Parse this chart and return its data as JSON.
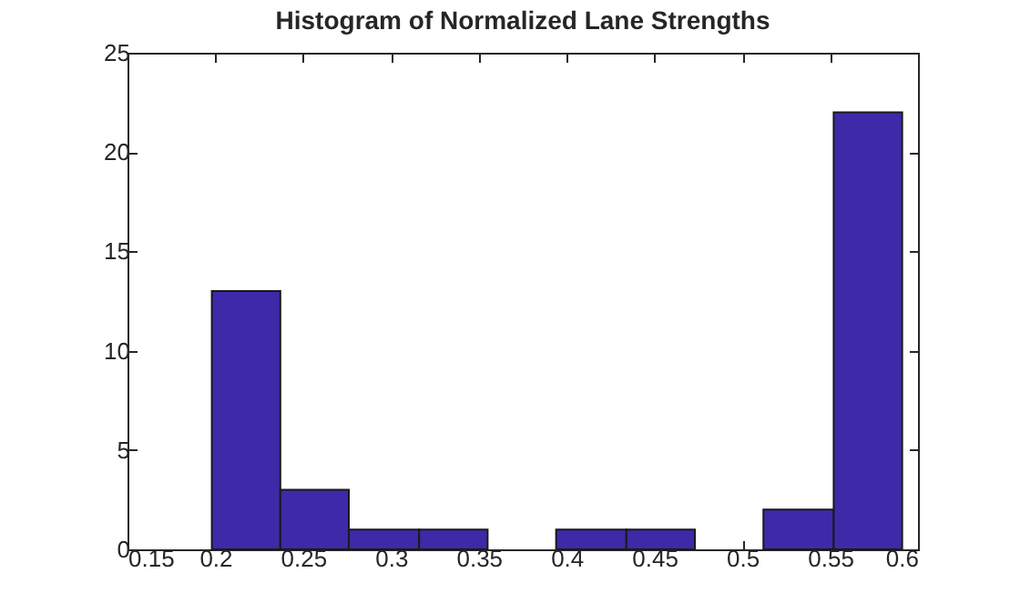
{
  "chart_data": {
    "type": "histogram",
    "title": "Histogram of Normalized Lane Strengths",
    "bins": [
      0.198,
      0.237,
      0.276,
      0.316,
      0.355,
      0.394,
      0.434,
      0.473,
      0.512,
      0.552,
      0.591
    ],
    "values": [
      13,
      3,
      1,
      1,
      0,
      1,
      1,
      0,
      2,
      22
    ],
    "color": "#3e29a8",
    "xlim": [
      0.15,
      0.6
    ],
    "xticks": [
      0.15,
      0.2,
      0.25,
      0.3,
      0.35,
      0.4,
      0.45,
      0.5,
      0.55,
      0.6
    ],
    "ylim": [
      0,
      25
    ],
    "yticks": [
      0,
      5,
      10,
      15,
      20,
      25
    ],
    "grid": false
  }
}
